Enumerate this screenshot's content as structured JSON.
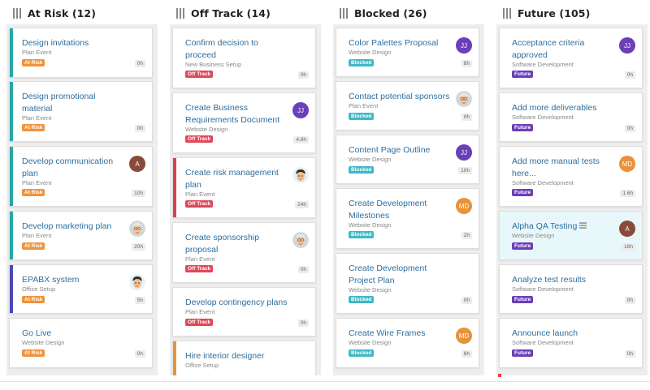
{
  "columns": [
    {
      "title": "At Risk (12)",
      "cards": [
        {
          "title": "Design invitations",
          "sub": "Plan Event",
          "badge": "At Risk",
          "hrs": "0h",
          "bar": "#2aa8a8",
          "avatar": null
        },
        {
          "title": "Design promotional material",
          "sub": "Plan Event",
          "badge": "At Risk",
          "hrs": "0h",
          "bar": "#2aa8a8",
          "avatar": null
        },
        {
          "title": "Develop communication plan",
          "sub": "Plan Event",
          "badge": "At Risk",
          "hrs": "10h",
          "bar": "#2aa8a8",
          "avatar": {
            "type": "initial",
            "text": "A",
            "color": "#8a4a3a"
          }
        },
        {
          "title": "Develop marketing plan",
          "sub": "Plan Event",
          "badge": "At Risk",
          "hrs": "20h",
          "bar": "#2aa8a8",
          "avatar": {
            "type": "face-old"
          }
        },
        {
          "title": "EPABX system",
          "sub": "Office Setup",
          "badge": "At Risk",
          "hrs": "5h",
          "bar": "#4a4ab8",
          "avatar": {
            "type": "face-young"
          }
        },
        {
          "title": "Go Live",
          "sub": "Website Design",
          "badge": "At Risk",
          "hrs": "0h",
          "bar": null,
          "avatar": null
        }
      ]
    },
    {
      "title": "Off Track (14)",
      "cards": [
        {
          "title": "Confirm decision to proceed",
          "sub": "New Business Setup",
          "badge": "Off Track",
          "hrs": "0h",
          "bar": null,
          "avatar": null
        },
        {
          "title": "Create Business Requirements Document",
          "sub": "Website Design",
          "badge": "Off Track",
          "hrs": "4.8h",
          "bar": null,
          "avatar": {
            "type": "initial",
            "text": "JJ",
            "color": "#6a3fb8"
          }
        },
        {
          "title": "Create risk management plan",
          "sub": "Plan Event",
          "badge": "Off Track",
          "hrs": "24h",
          "bar": "#d94050",
          "avatar": {
            "type": "face-young"
          }
        },
        {
          "title": "Create sponsorship proposal",
          "sub": "Plan Event",
          "badge": "Off Track",
          "hrs": "0h",
          "bar": null,
          "avatar": {
            "type": "face-old"
          }
        },
        {
          "title": "Develop contingency plans",
          "sub": "Plan Event",
          "badge": "Off Track",
          "hrs": "0h",
          "bar": null,
          "avatar": null
        },
        {
          "title": "Hire interior designer",
          "sub": "Office Setup",
          "badge": "",
          "hrs": "",
          "bar": "#e8923a",
          "avatar": null
        }
      ]
    },
    {
      "title": "Blocked (26)",
      "cards": [
        {
          "title": "Color Palettes Proposal",
          "sub": "Website Design",
          "badge": "Blocked",
          "hrs": "8h",
          "bar": null,
          "avatar": {
            "type": "initial",
            "text": "JJ",
            "color": "#6a3fb8"
          }
        },
        {
          "title": "Contact potential sponsors",
          "sub": "Plan Event",
          "badge": "Blocked",
          "hrs": "0h",
          "bar": null,
          "avatar": {
            "type": "face-old"
          }
        },
        {
          "title": "Content Page Outline",
          "sub": "Website Design",
          "badge": "Blocked",
          "hrs": "10h",
          "bar": null,
          "avatar": {
            "type": "initial",
            "text": "JJ",
            "color": "#6a3fb8"
          }
        },
        {
          "title": "Create Development Milestones",
          "sub": "Website Design",
          "badge": "Blocked",
          "hrs": "2h",
          "bar": null,
          "avatar": {
            "type": "initial",
            "text": "MD",
            "color": "#e8923a"
          }
        },
        {
          "title": "Create Development Project Plan",
          "sub": "Website Design",
          "badge": "Blocked",
          "hrs": "0h",
          "bar": null,
          "avatar": null
        },
        {
          "title": "Create Wire Frames",
          "sub": "Website Design",
          "badge": "Blocked",
          "hrs": "6h",
          "bar": null,
          "avatar": {
            "type": "initial",
            "text": "MD",
            "color": "#e8923a"
          }
        }
      ]
    },
    {
      "title": "Future (105)",
      "cards": [
        {
          "title": "Acceptance criteria approved",
          "sub": "Software Development",
          "badge": "Future",
          "hrs": "0h",
          "bar": null,
          "avatar": {
            "type": "initial",
            "text": "JJ",
            "color": "#6a3fb8"
          }
        },
        {
          "title": "Add more deliverables",
          "sub": "Software Development",
          "badge": "Future",
          "hrs": "0h",
          "bar": null,
          "avatar": null
        },
        {
          "title": "Add more manual tests here...",
          "sub": "Software Development",
          "badge": "Future",
          "hrs": "1.6h",
          "bar": null,
          "avatar": {
            "type": "initial",
            "text": "MD",
            "color": "#e8923a"
          }
        },
        {
          "title": "Alpha QA Testing",
          "sub": "Website Design",
          "badge": "Future",
          "hrs": "16h",
          "bar": null,
          "avatar": {
            "type": "initial",
            "text": "A",
            "color": "#8a4a3a"
          },
          "highlight": true,
          "menu": true
        },
        {
          "title": "Analyze test results",
          "sub": "Software Development",
          "badge": "Future",
          "hrs": "0h",
          "bar": null,
          "avatar": null
        },
        {
          "title": "Announce launch",
          "sub": "Software Development",
          "badge": "Future",
          "hrs": "0h",
          "bar": null,
          "avatar": null
        }
      ]
    }
  ],
  "badge_colors": {
    "At Risk": "#f0933c",
    "Off Track": "#e04858",
    "Blocked": "#3fb8c8",
    "Future": "#6a3fb8"
  }
}
